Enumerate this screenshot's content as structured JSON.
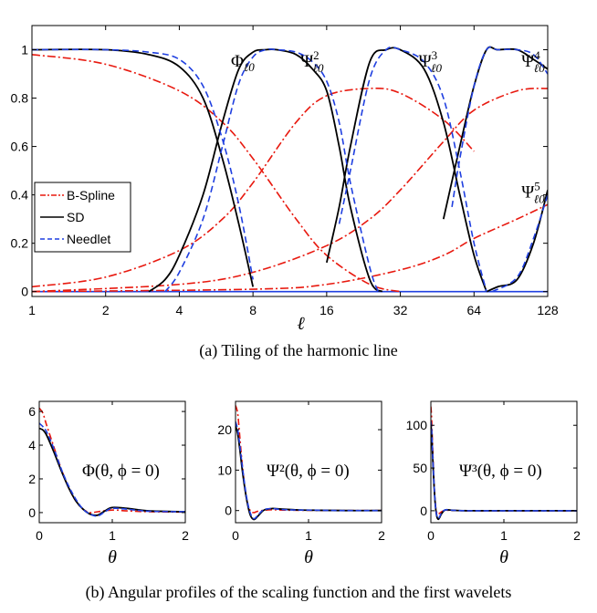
{
  "captions": {
    "a": "(a)  Tiling of the harmonic line",
    "b": "(b)  Angular profiles of the scaling function and the first wavelets"
  },
  "colors": {
    "bspline": "#e8190f",
    "sd": "#000000",
    "needlet": "#1f3fe0"
  },
  "chart_data": [
    {
      "type": "line",
      "xlabel": "ℓ",
      "xscale": "log2",
      "xticks": [
        1,
        2,
        4,
        8,
        16,
        32,
        64,
        128
      ],
      "yticks": [
        "0",
        "0.2",
        "0.4",
        "0.6",
        "0.8",
        "1"
      ],
      "xlim": [
        1,
        128
      ],
      "ylim": [
        -0.02,
        1.1
      ],
      "legend": {
        "placement": "center-left",
        "entries": [
          "B-Spline",
          "SD",
          "Needlet"
        ]
      },
      "annotations": [
        {
          "base": "Φ",
          "sub": "ℓ0",
          "sup": "",
          "at_l": 6.5,
          "at_y": 0.93
        },
        {
          "base": "Ψ",
          "sub": "ℓ0",
          "sup": "2",
          "at_l": 12.5,
          "at_y": 0.93
        },
        {
          "base": "Ψ",
          "sub": "ℓ0",
          "sup": "3",
          "at_l": 38,
          "at_y": 0.93
        },
        {
          "base": "Ψ",
          "sub": "ℓ0",
          "sup": "4",
          "at_l": 100,
          "at_y": 0.93
        },
        {
          "base": "Ψ",
          "sub": "ℓ0",
          "sup": "5",
          "at_l": 100,
          "at_y": 0.39
        }
      ],
      "series": [
        {
          "name": "B-Spline",
          "style": "dash-dot",
          "curves": [
            {
              "l": [
                1,
                2,
                4,
                6,
                8,
                12,
                16,
                24,
                32
              ],
              "y": [
                0.98,
                0.94,
                0.83,
                0.7,
                0.55,
                0.3,
                0.15,
                0.03,
                0.0
              ]
            },
            {
              "l": [
                1,
                2,
                4,
                6,
                8,
                12,
                16,
                24,
                32,
                48,
                64
              ],
              "y": [
                0.02,
                0.06,
                0.17,
                0.3,
                0.45,
                0.7,
                0.81,
                0.84,
                0.82,
                0.71,
                0.58
              ]
            },
            {
              "l": [
                1,
                4,
                8,
                16,
                24,
                32,
                48,
                64,
                96,
                128
              ],
              "y": [
                0.0,
                0.03,
                0.08,
                0.19,
                0.3,
                0.42,
                0.62,
                0.75,
                0.83,
                0.84
              ]
            },
            {
              "l": [
                1,
                8,
                16,
                32,
                48,
                64,
                96,
                128
              ],
              "y": [
                0.0,
                0.01,
                0.03,
                0.09,
                0.15,
                0.22,
                0.3,
                0.36
              ]
            }
          ]
        },
        {
          "name": "SD",
          "style": "solid",
          "curves": [
            {
              "l": [
                1,
                2,
                3,
                4,
                5,
                6,
                7,
                8
              ],
              "y": [
                1,
                1,
                0.98,
                0.93,
                0.8,
                0.55,
                0.28,
                0.02
              ]
            },
            {
              "l": [
                3,
                3.5,
                4,
                5,
                6,
                7,
                8,
                9,
                10,
                12,
                14,
                16,
                18,
                20,
                24,
                27
              ],
              "y": [
                0,
                0.05,
                0.15,
                0.4,
                0.7,
                0.92,
                0.99,
                1,
                1,
                0.98,
                0.92,
                0.83,
                0.6,
                0.35,
                0.05,
                0
              ]
            },
            {
              "l": [
                16,
                18,
                20,
                24,
                28,
                32,
                40,
                48,
                56,
                64,
                72
              ],
              "y": [
                0.12,
                0.35,
                0.6,
                0.95,
                1,
                1,
                0.92,
                0.7,
                0.4,
                0.15,
                0
              ]
            },
            {
              "l": [
                48,
                56,
                64,
                72,
                80,
                96,
                112,
                128
              ],
              "y": [
                0.3,
                0.6,
                0.85,
                1,
                1,
                1,
                0.96,
                0.92
              ]
            },
            {
              "l": [
                72,
                80,
                96,
                112,
                128
              ],
              "y": [
                0,
                0.02,
                0.05,
                0.2,
                0.42
              ]
            }
          ]
        },
        {
          "name": "Needlet",
          "style": "dashed",
          "curves": [
            {
              "l": [
                1,
                2,
                3,
                4,
                5,
                6,
                7,
                8
              ],
              "y": [
                1,
                1,
                0.99,
                0.96,
                0.85,
                0.63,
                0.36,
                0.05
              ]
            },
            {
              "l": [
                3.5,
                4,
                5,
                6,
                7,
                8,
                9,
                10,
                12,
                14,
                16,
                18,
                20,
                24,
                26
              ],
              "y": [
                0,
                0.08,
                0.3,
                0.6,
                0.86,
                0.97,
                1,
                1,
                0.99,
                0.95,
                0.87,
                0.7,
                0.45,
                0.1,
                0
              ]
            },
            {
              "l": [
                18,
                20,
                24,
                28,
                32,
                40,
                48,
                56,
                64,
                72
              ],
              "y": [
                0.28,
                0.5,
                0.88,
                1,
                1,
                0.95,
                0.8,
                0.5,
                0.2,
                0
              ]
            },
            {
              "l": [
                52,
                56,
                64,
                72,
                80,
                96,
                112,
                128
              ],
              "y": [
                0.35,
                0.55,
                0.85,
                1,
                1,
                1,
                0.98,
                0.9
              ]
            },
            {
              "l": [
                76,
                96,
                112,
                128
              ],
              "y": [
                0,
                0.06,
                0.22,
                0.4
              ]
            }
          ]
        }
      ]
    },
    {
      "type": "line",
      "label": "Φ(θ, ϕ = 0)",
      "xlabel": "θ",
      "xticks": [
        "0",
        "1",
        "2"
      ],
      "xlim": [
        0,
        2
      ],
      "yticks": [
        "0",
        "2",
        "4",
        "6"
      ],
      "ylim": [
        -0.6,
        6.6
      ],
      "series": [
        {
          "name": "B-Spline",
          "x": [
            0,
            0.05,
            0.1,
            0.2,
            0.3,
            0.4,
            0.5,
            0.6,
            0.7,
            0.8,
            1.0,
            1.2,
            1.5,
            2.0
          ],
          "y": [
            6.2,
            5.9,
            5.2,
            3.9,
            2.6,
            1.5,
            0.7,
            0.2,
            0.0,
            0.05,
            0.15,
            0.1,
            0.05,
            0.03
          ]
        },
        {
          "name": "SD",
          "x": [
            0,
            0.05,
            0.1,
            0.2,
            0.3,
            0.4,
            0.5,
            0.6,
            0.7,
            0.8,
            0.9,
            1.0,
            1.2,
            1.5,
            2.0
          ],
          "y": [
            5.0,
            4.9,
            4.6,
            3.6,
            2.5,
            1.5,
            0.7,
            0.2,
            -0.1,
            -0.15,
            0.1,
            0.3,
            0.25,
            0.1,
            0.05
          ]
        },
        {
          "name": "Needlet",
          "x": [
            0,
            0.05,
            0.1,
            0.2,
            0.3,
            0.4,
            0.5,
            0.6,
            0.7,
            0.8,
            0.9,
            1.0,
            1.2,
            1.5,
            2.0
          ],
          "y": [
            5.3,
            5.1,
            4.8,
            3.8,
            2.6,
            1.6,
            0.8,
            0.2,
            -0.1,
            -0.2,
            0.05,
            0.25,
            0.2,
            0.08,
            0.05
          ]
        }
      ]
    },
    {
      "type": "line",
      "label": "Ψ²(θ, ϕ = 0)",
      "xlabel": "θ",
      "xticks": [
        "0",
        "1",
        "2"
      ],
      "xlim": [
        0,
        2
      ],
      "yticks": [
        "0",
        "10",
        "20"
      ],
      "ylim": [
        -3,
        27
      ],
      "series": [
        {
          "name": "B-Spline",
          "x": [
            0,
            0.03,
            0.06,
            0.1,
            0.15,
            0.2,
            0.25,
            0.3,
            0.4,
            0.5,
            0.7,
            1.0,
            1.5,
            2.0
          ],
          "y": [
            26,
            24,
            18,
            10,
            3,
            0,
            -0.5,
            -0.2,
            0.1,
            0.2,
            0.1,
            0.05,
            0,
            0
          ]
        },
        {
          "name": "SD",
          "x": [
            0,
            0.03,
            0.06,
            0.1,
            0.15,
            0.2,
            0.25,
            0.3,
            0.35,
            0.4,
            0.5,
            0.6,
            0.8,
            1.0,
            1.5,
            2.0
          ],
          "y": [
            21,
            19,
            15,
            9,
            3,
            -1,
            -2.2,
            -1.5,
            -0.5,
            0.2,
            0.5,
            0.4,
            0.2,
            0.1,
            0,
            0
          ]
        },
        {
          "name": "Needlet",
          "x": [
            0,
            0.03,
            0.06,
            0.1,
            0.15,
            0.2,
            0.25,
            0.3,
            0.35,
            0.4,
            0.5,
            0.6,
            0.8,
            1.0,
            1.5,
            2.0
          ],
          "y": [
            22,
            20,
            16,
            10,
            3.5,
            -0.5,
            -2,
            -1.3,
            -0.3,
            0.3,
            0.5,
            0.3,
            0.15,
            0.1,
            0,
            0
          ]
        }
      ]
    },
    {
      "type": "line",
      "label": "Ψ³(θ, ϕ = 0)",
      "xlabel": "θ",
      "xticks": [
        "0",
        "1",
        "2"
      ],
      "xlim": [
        0,
        2
      ],
      "yticks": [
        "0",
        "50",
        "100"
      ],
      "ylim": [
        -14,
        128
      ],
      "series": [
        {
          "name": "B-Spline",
          "x": [
            0,
            0.01,
            0.02,
            0.04,
            0.06,
            0.08,
            0.1,
            0.15,
            0.2,
            0.3,
            0.5,
            1.0,
            2.0
          ],
          "y": [
            122,
            110,
            85,
            40,
            10,
            -2,
            -4,
            -1,
            0.5,
            0.3,
            0,
            0,
            0
          ]
        },
        {
          "name": "SD",
          "x": [
            0,
            0.01,
            0.02,
            0.04,
            0.06,
            0.08,
            0.1,
            0.12,
            0.15,
            0.2,
            0.3,
            0.5,
            1.0,
            2.0
          ],
          "y": [
            100,
            92,
            72,
            35,
            8,
            -6,
            -10,
            -8,
            -3,
            1,
            0.5,
            0,
            0,
            0
          ]
        },
        {
          "name": "Needlet",
          "x": [
            0,
            0.01,
            0.02,
            0.04,
            0.06,
            0.08,
            0.1,
            0.12,
            0.15,
            0.2,
            0.3,
            0.5,
            1.0,
            2.0
          ],
          "y": [
            105,
            96,
            76,
            38,
            9,
            -5,
            -9,
            -7,
            -2,
            1,
            0.5,
            0,
            0,
            0
          ]
        }
      ]
    }
  ]
}
